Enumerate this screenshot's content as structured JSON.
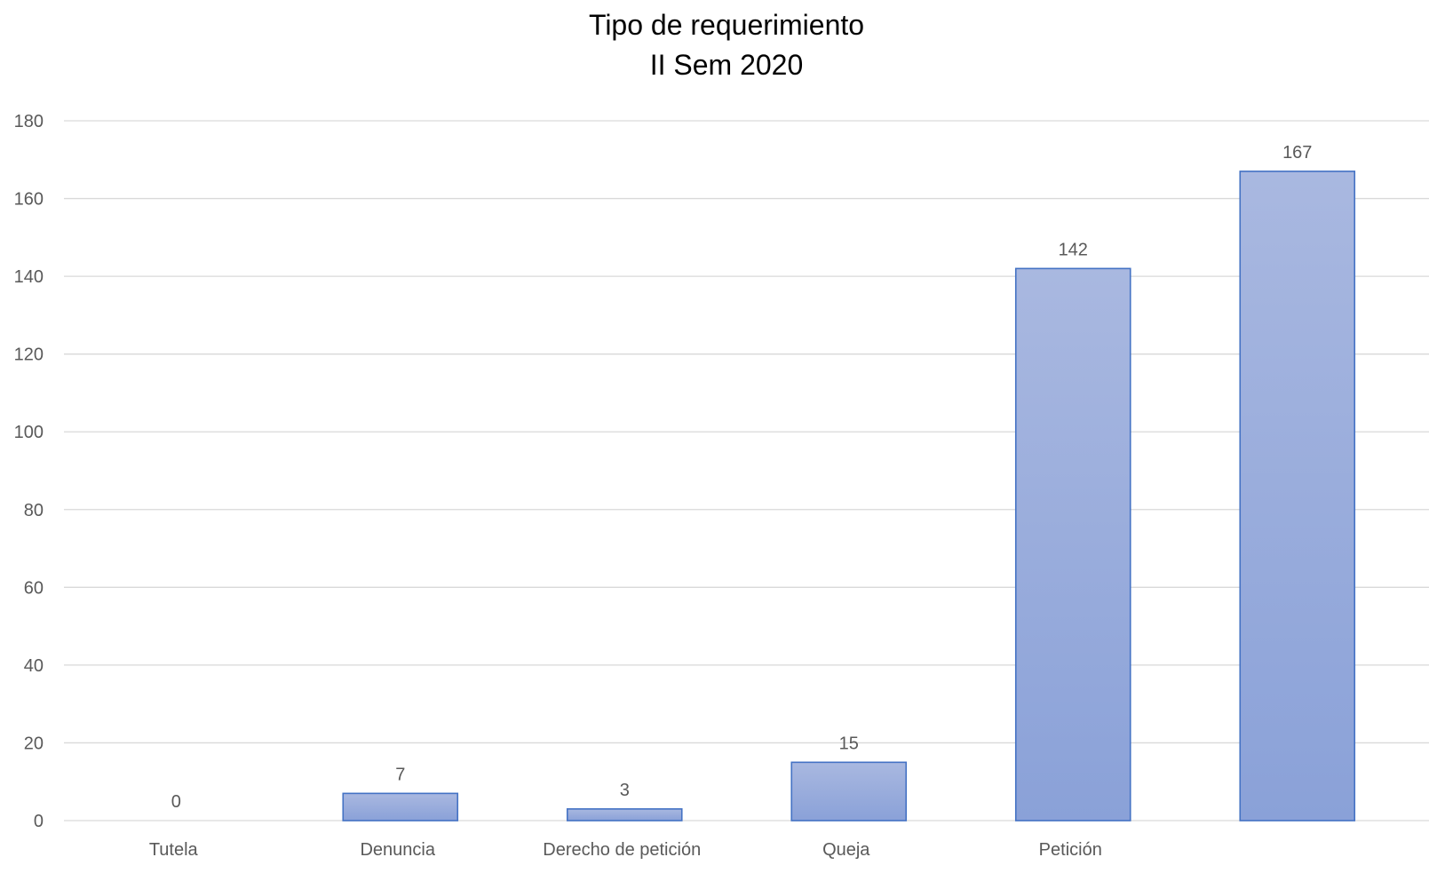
{
  "chart_data": {
    "type": "bar",
    "title": "Tipo de requerimiento",
    "subtitle": "II Sem 2020",
    "categories": [
      "Tutela",
      "Denuncia",
      "Derecho de petición",
      "Queja",
      "Petición",
      ""
    ],
    "values": [
      0,
      7,
      3,
      15,
      142,
      167
    ],
    "data_labels": [
      "0",
      "7",
      "3",
      "15",
      "142",
      "167"
    ],
    "ylim": [
      0,
      180
    ],
    "yticks": [
      0,
      20,
      40,
      60,
      80,
      100,
      120,
      140,
      160,
      180
    ],
    "grid": true,
    "legend": "none",
    "colors": {
      "bar_fill_top": "#a9b8e0",
      "bar_fill_bottom": "#8aa1d8",
      "bar_border": "#4472c4",
      "grid": "#d9d9d9",
      "tick_text": "#595959",
      "title_text": "#000000"
    }
  }
}
